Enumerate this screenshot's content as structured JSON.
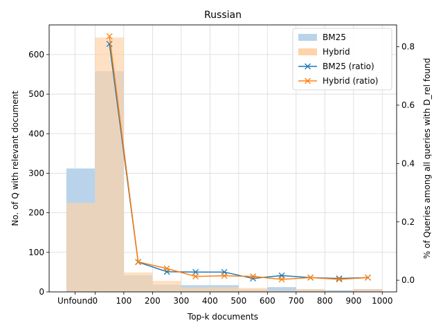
{
  "chart_data": {
    "type": "bar",
    "title": "Russian",
    "xlabel": "Top-k documents",
    "ylabel_left": "No. of Q with relevant document",
    "ylabel_right": "% of Queries among all queries with D_rel found",
    "x_tick_labels": [
      "Unfound",
      "0",
      "100",
      "200",
      "300",
      "400",
      "500",
      "600",
      "700",
      "800",
      "900",
      "1000"
    ],
    "y_left_ticks": [
      0,
      100,
      200,
      300,
      400,
      500,
      600
    ],
    "y_right_ticks": [
      0.0,
      0.2,
      0.4,
      0.6,
      0.8
    ],
    "ylim_left": [
      0,
      675
    ],
    "ylim_right": [
      -0.04,
      0.875
    ],
    "grid": true,
    "legend_position": "top-right",
    "bins": [
      {
        "label": "Unfound",
        "x0": -100,
        "x1": 0
      },
      {
        "x0": 0,
        "x1": 100
      },
      {
        "x0": 100,
        "x1": 200
      },
      {
        "x0": 200,
        "x1": 300
      },
      {
        "x0": 300,
        "x1": 400
      },
      {
        "x0": 400,
        "x1": 500
      },
      {
        "x0": 500,
        "x1": 600
      },
      {
        "x0": 600,
        "x1": 700
      },
      {
        "x0": 700,
        "x1": 800
      },
      {
        "x0": 800,
        "x1": 900
      },
      {
        "x0": 900,
        "x1": 1000
      }
    ],
    "bar_series": [
      {
        "name": "BM25",
        "color": "#b9d4ea",
        "values": [
          312,
          558,
          42,
          18,
          17,
          17,
          6,
          12,
          6,
          4,
          7
        ]
      },
      {
        "name": "Hybrid",
        "color": "#fdd3a9",
        "values": [
          225,
          643,
          49,
          28,
          11,
          12,
          10,
          3,
          7,
          2,
          7
        ]
      }
    ],
    "ratio_x": [
      50,
      150,
      250,
      350,
      450,
      550,
      650,
      750,
      850,
      950
    ],
    "line_series": [
      {
        "name": "BM25 (ratio)",
        "color": "#1f77b4",
        "values": [
          0.81,
          0.062,
          0.029,
          0.028,
          0.028,
          0.006,
          0.016,
          0.009,
          0.006,
          0.009
        ]
      },
      {
        "name": "Hybrid (ratio)",
        "color": "#ff7f0e",
        "values": [
          0.836,
          0.063,
          0.04,
          0.013,
          0.015,
          0.013,
          0.003,
          0.009,
          0.003,
          0.009
        ]
      }
    ]
  }
}
